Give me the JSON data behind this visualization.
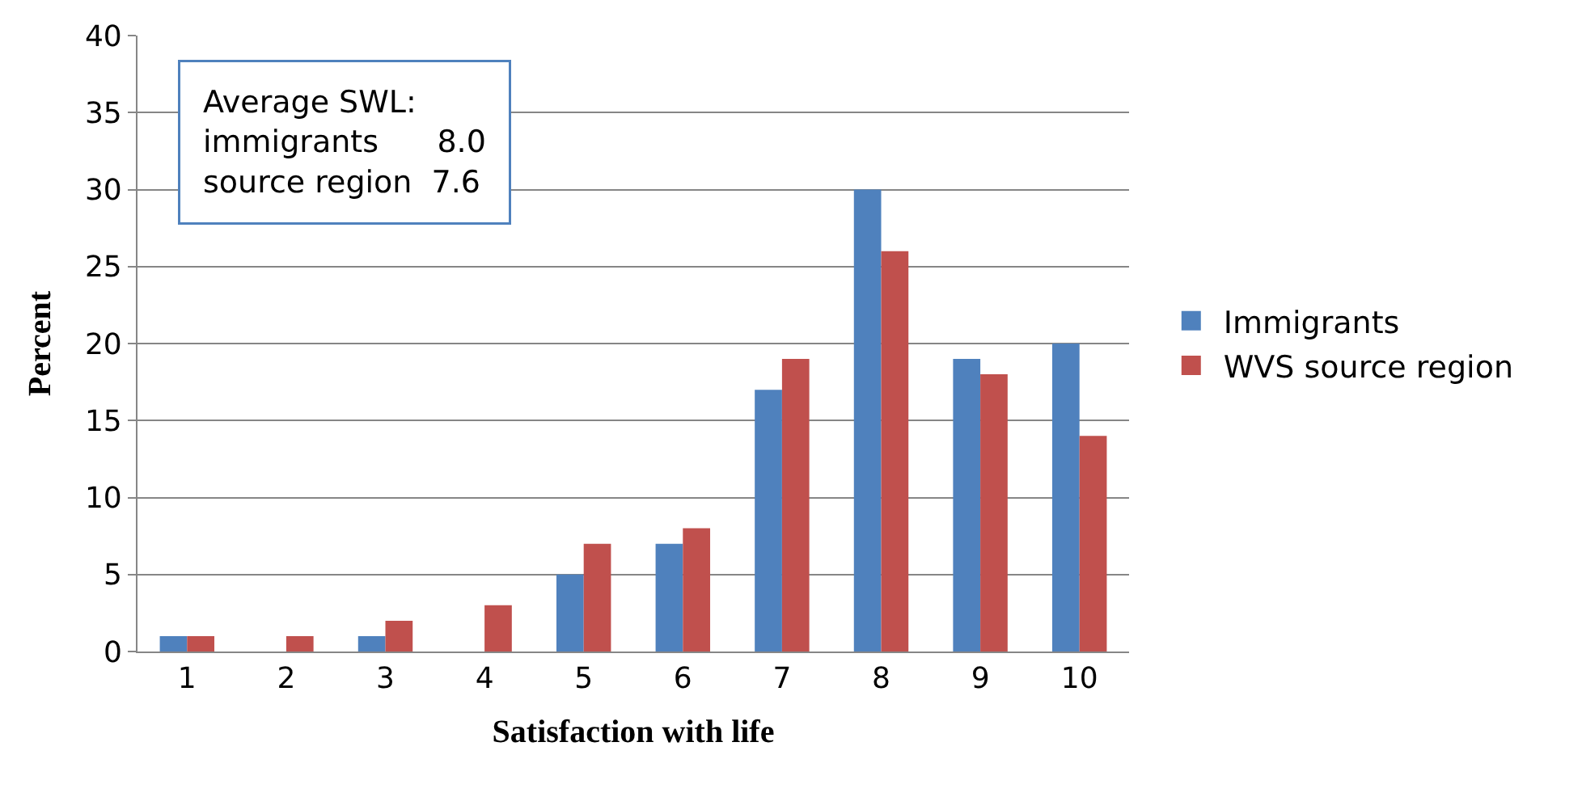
{
  "chart_data": {
    "type": "bar",
    "xlabel": "Satisfaction with life",
    "ylabel": "Percent",
    "categories": [
      "1",
      "2",
      "3",
      "4",
      "5",
      "6",
      "7",
      "8",
      "9",
      "10"
    ],
    "series": [
      {
        "name": "Immigrants",
        "color": "#4f81bd",
        "values": [
          1,
          0,
          1,
          0,
          5,
          7,
          17,
          30,
          19,
          20
        ]
      },
      {
        "name": "WVS source region",
        "color": "#c0504d",
        "values": [
          1,
          1,
          2,
          3,
          7,
          8,
          19,
          26,
          18,
          14
        ]
      }
    ],
    "ylim": [
      0,
      40
    ],
    "yticks": [
      0,
      5,
      10,
      15,
      20,
      25,
      30,
      35,
      40
    ],
    "grid": "y",
    "legend": "right",
    "annotations": [
      "Average SWL:\nimmigrants      8.0\nsource region  7.6"
    ]
  }
}
